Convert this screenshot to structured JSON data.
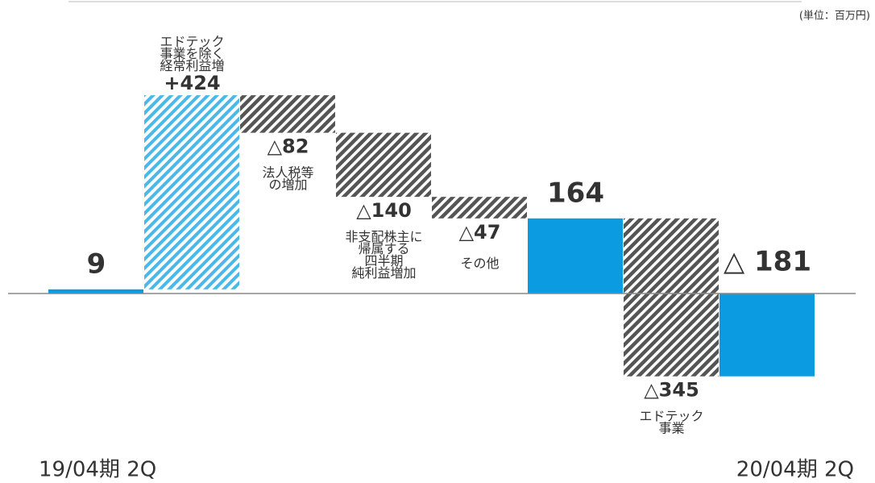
{
  "chart_data": {
    "type": "waterfall",
    "note": "(単位：百万円)",
    "categories": [
      "19/04期 2Q",
      "エドテック\n事業を除く\n経常利益増",
      "法人税等\nの増加",
      "非支配株主に\n帰属する\n四半期\n純利益増加",
      "その他",
      null,
      "エドテック\n事業",
      "20/04期 2Q"
    ],
    "measure": [
      "absolute",
      "relative",
      "relative",
      "relative",
      "relative",
      "total",
      "relative",
      "total"
    ],
    "values": [
      9,
      424,
      -82,
      -140,
      -47,
      164,
      -345,
      -181
    ],
    "value_labels": [
      "9",
      "+424",
      "△82",
      "△140",
      "△47",
      "164",
      "△345",
      "△ 181"
    ],
    "total_color": "#0a9be0",
    "increase_color": "#4ab8e8",
    "decrease_color": "#555555",
    "ylim": [
      -414,
      641
    ]
  }
}
